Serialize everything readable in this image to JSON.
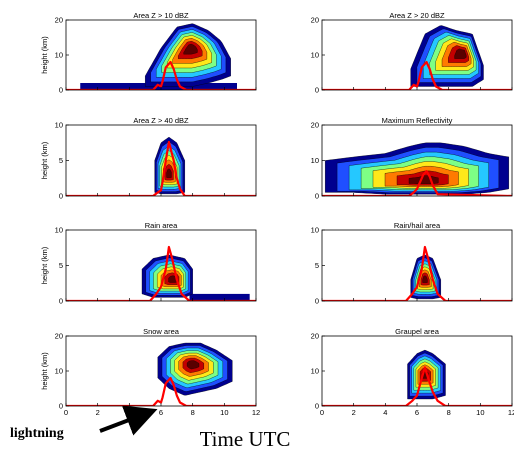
{
  "figure": {
    "xlabel": "Time UTC",
    "annotation": "lightning"
  },
  "chart_data": [
    {
      "type": "area",
      "title": "Area Z > 10 dBZ",
      "ylabel": "height (km)",
      "xlim": [
        0,
        12
      ],
      "ylim": [
        0,
        20
      ],
      "xticks": [],
      "yticks": [
        0,
        10,
        20
      ],
      "field": {
        "x": [
          5.0,
          6.0,
          7.0,
          8.0,
          9.0,
          9.8,
          10.4
        ],
        "base": [
          1,
          1,
          1,
          1,
          2,
          3,
          4
        ],
        "top": [
          4,
          12,
          18,
          19,
          17,
          14,
          9
        ],
        "peak": [
          7.9,
          12
        ]
      },
      "floor": [
        0.9,
        10.8,
        2
      ],
      "lightning": {
        "x": [
          0,
          5.5,
          5.8,
          6.0,
          6.1,
          6.3,
          6.6,
          6.8,
          7.0,
          7.2,
          7.6,
          12
        ],
        "y": [
          0,
          0,
          1.5,
          1.0,
          2.5,
          6.5,
          8.0,
          6.0,
          3.0,
          1.0,
          0,
          0
        ]
      }
    },
    {
      "type": "area",
      "title": "Area Z > 20 dBZ",
      "ylabel": "",
      "xlim": [
        0,
        12
      ],
      "ylim": [
        0,
        20
      ],
      "xticks": [],
      "yticks": [
        0,
        10,
        20
      ],
      "field": {
        "x": [
          5.6,
          6.5,
          7.5,
          8.5,
          9.5,
          10.2
        ],
        "base": [
          1,
          1,
          1,
          1,
          1,
          3
        ],
        "top": [
          6,
          16,
          18.5,
          17,
          16,
          7
        ],
        "peak": [
          8.9,
          10.5
        ]
      },
      "floor": null,
      "lightning": {
        "x": [
          0,
          5.5,
          5.8,
          6.0,
          6.1,
          6.3,
          6.6,
          6.8,
          7.0,
          7.2,
          7.6,
          12
        ],
        "y": [
          0,
          0,
          1.5,
          1.0,
          2.5,
          6.5,
          8.0,
          6.0,
          3.0,
          1.0,
          0,
          0
        ]
      }
    },
    {
      "type": "area",
      "title": "Area Z > 40 dBZ",
      "ylabel": "height (km)",
      "xlim": [
        0,
        12
      ],
      "ylim": [
        0,
        10
      ],
      "xticks": [],
      "yticks": [
        0,
        5,
        10
      ],
      "field": {
        "x": [
          5.6,
          6.0,
          6.5,
          7.0,
          7.5
        ],
        "base": [
          0.5,
          0.3,
          0.3,
          0.3,
          0.5
        ],
        "top": [
          5,
          7.5,
          8.3,
          7.5,
          5
        ],
        "peak": [
          6.5,
          3
        ]
      },
      "floor": null,
      "lightning": {
        "x": [
          0,
          5.5,
          5.8,
          6.0,
          6.1,
          6.3,
          6.5,
          6.8,
          7.0,
          7.2,
          7.5,
          12
        ],
        "y": [
          0,
          0,
          0.5,
          0.8,
          2.0,
          5.0,
          7.6,
          5.0,
          2.5,
          1.0,
          0,
          0
        ]
      }
    },
    {
      "type": "area",
      "title": "Maximum Reflectivity",
      "ylabel": "",
      "xlim": [
        0,
        12
      ],
      "ylim": [
        0,
        20
      ],
      "xticks": [],
      "yticks": [
        0,
        10,
        20
      ],
      "field": {
        "x": [
          0.2,
          2,
          4,
          5.5,
          6.5,
          7.5,
          9,
          10.5,
          11.8
        ],
        "base": [
          1,
          1,
          0.5,
          0.5,
          0.5,
          0.5,
          0.5,
          1,
          2
        ],
        "top": [
          10,
          11,
          12,
          14,
          15,
          15,
          14,
          12,
          11
        ],
        "peak": [
          6.5,
          4
        ]
      },
      "floor": null,
      "lightning": {
        "x": [
          0,
          5.5,
          5.8,
          6.0,
          6.2,
          6.4,
          6.6,
          6.8,
          7.0,
          7.3,
          12
        ],
        "y": [
          0,
          0,
          1.0,
          2.0,
          4.0,
          6.0,
          7.0,
          5.5,
          3.0,
          0.5,
          0
        ]
      }
    },
    {
      "type": "area",
      "title": "Rain area",
      "ylabel": "height (km)",
      "xlim": [
        0,
        12
      ],
      "ylim": [
        0,
        10
      ],
      "xticks": [],
      "yticks": [
        0,
        5,
        10
      ],
      "field": {
        "x": [
          4.8,
          5.5,
          6.5,
          7.5,
          8.0
        ],
        "base": [
          1,
          0.5,
          0.5,
          0.5,
          1
        ],
        "top": [
          4.5,
          6,
          6.5,
          6,
          4.5
        ],
        "peak": [
          6.8,
          3
        ]
      },
      "floor": [
        7.8,
        11.6,
        1
      ],
      "lightning": {
        "x": [
          0,
          5.3,
          5.7,
          6.0,
          6.3,
          6.5,
          6.7,
          7.0,
          7.3,
          7.8,
          12
        ],
        "y": [
          0,
          0,
          1.0,
          2.0,
          4.5,
          7.6,
          6.0,
          3.0,
          1.0,
          0,
          0
        ]
      }
    },
    {
      "type": "area",
      "title": "Rain/hail area",
      "ylabel": "",
      "xlim": [
        0,
        12
      ],
      "ylim": [
        0,
        10
      ],
      "xticks": [],
      "yticks": [
        0,
        5,
        10
      ],
      "field": {
        "x": [
          5.6,
          6.0,
          6.5,
          7.0,
          7.5
        ],
        "base": [
          0.5,
          0.3,
          0.3,
          0.3,
          0.5
        ],
        "top": [
          3,
          6,
          6.5,
          6,
          3
        ],
        "peak": [
          6.5,
          3
        ]
      },
      "floor": null,
      "lightning": {
        "x": [
          0,
          5.3,
          5.7,
          6.0,
          6.3,
          6.5,
          6.7,
          7.0,
          7.3,
          7.8,
          12
        ],
        "y": [
          0,
          0,
          1.0,
          2.0,
          4.5,
          7.6,
          6.0,
          3.0,
          1.0,
          0,
          0
        ]
      }
    },
    {
      "type": "area",
      "title": "Snow area",
      "ylabel": "height (km)",
      "xlim": [
        0,
        12
      ],
      "ylim": [
        0,
        20
      ],
      "xticks": [
        0,
        2,
        4,
        6,
        8,
        10,
        12
      ],
      "yticks": [
        0,
        10,
        20
      ],
      "field": {
        "x": [
          5.8,
          6.5,
          7.5,
          8.5,
          9.5,
          10.5
        ],
        "base": [
          8,
          5,
          3,
          4,
          5,
          7
        ],
        "top": [
          14,
          17,
          18,
          18,
          16,
          13
        ],
        "peak": [
          8.0,
          12
        ]
      },
      "floor": null,
      "lightning": {
        "x": [
          0,
          5.5,
          5.8,
          6.0,
          6.1,
          6.3,
          6.6,
          6.8,
          7.0,
          7.2,
          7.6,
          12
        ],
        "y": [
          0,
          0,
          1.5,
          1.0,
          2.5,
          6.5,
          8.0,
          6.0,
          3.0,
          1.0,
          0,
          0
        ]
      }
    },
    {
      "type": "area",
      "title": "Graupel area",
      "ylabel": "",
      "xlim": [
        0,
        12
      ],
      "ylim": [
        0,
        20
      ],
      "xticks": [
        0,
        2,
        4,
        6,
        8,
        10,
        12
      ],
      "yticks": [
        0,
        10,
        20
      ],
      "field": {
        "x": [
          5.4,
          6.0,
          6.5,
          7.0,
          7.8
        ],
        "base": [
          2,
          2,
          2,
          2,
          3
        ],
        "top": [
          12,
          15,
          16,
          15,
          12
        ],
        "peak": [
          6.5,
          9
        ]
      },
      "floor": null,
      "lightning": {
        "x": [
          0,
          5.3,
          5.7,
          6.0,
          6.3,
          6.5,
          6.7,
          7.0,
          7.3,
          7.8,
          12
        ],
        "y": [
          0,
          0,
          1.5,
          3.0,
          8.0,
          11.0,
          8.0,
          4.0,
          1.5,
          0,
          0
        ]
      }
    }
  ]
}
